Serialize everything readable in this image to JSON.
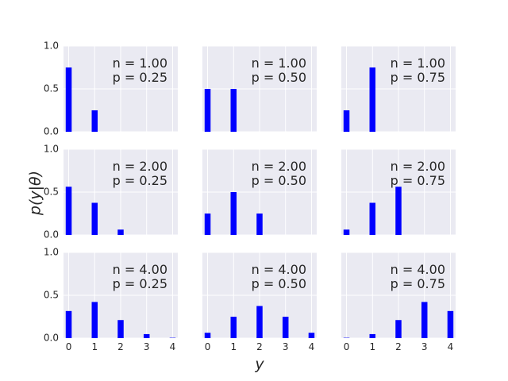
{
  "figure": {
    "ylabel": "p(y|θ)",
    "xlabel": "y"
  },
  "colors": {
    "bar": "#0000ff",
    "panel_bg": "#eaeaf2",
    "grid": "#ffffff",
    "text": "#262626"
  },
  "chart_data": [
    {
      "type": "bar",
      "n_label": "n = 1.00",
      "p_label": "p = 0.25",
      "x": [
        0,
        1
      ],
      "values": [
        0.75,
        0.25
      ],
      "xlim": [
        0,
        4
      ],
      "ylim": [
        0,
        1
      ],
      "yticks": [
        "0.0",
        "0.5",
        "1.0"
      ],
      "xticks": []
    },
    {
      "type": "bar",
      "n_label": "n = 1.00",
      "p_label": "p = 0.50",
      "x": [
        0,
        1
      ],
      "values": [
        0.5,
        0.5
      ],
      "xlim": [
        0,
        4
      ],
      "ylim": [
        0,
        1
      ],
      "yticks": [],
      "xticks": []
    },
    {
      "type": "bar",
      "n_label": "n = 1.00",
      "p_label": "p = 0.75",
      "x": [
        0,
        1
      ],
      "values": [
        0.25,
        0.75
      ],
      "xlim": [
        0,
        4
      ],
      "ylim": [
        0,
        1
      ],
      "yticks": [],
      "xticks": []
    },
    {
      "type": "bar",
      "n_label": "n = 2.00",
      "p_label": "p = 0.25",
      "x": [
        0,
        1,
        2
      ],
      "values": [
        0.5625,
        0.375,
        0.0625
      ],
      "xlim": [
        0,
        4
      ],
      "ylim": [
        0,
        1
      ],
      "yticks": [
        "0.0",
        "0.5",
        "1.0"
      ],
      "xticks": []
    },
    {
      "type": "bar",
      "n_label": "n = 2.00",
      "p_label": "p = 0.50",
      "x": [
        0,
        1,
        2
      ],
      "values": [
        0.25,
        0.5,
        0.25
      ],
      "xlim": [
        0,
        4
      ],
      "ylim": [
        0,
        1
      ],
      "yticks": [],
      "xticks": []
    },
    {
      "type": "bar",
      "n_label": "n = 2.00",
      "p_label": "p = 0.75",
      "x": [
        0,
        1,
        2
      ],
      "values": [
        0.0625,
        0.375,
        0.5625
      ],
      "xlim": [
        0,
        4
      ],
      "ylim": [
        0,
        1
      ],
      "yticks": [],
      "xticks": []
    },
    {
      "type": "bar",
      "n_label": "n = 4.00",
      "p_label": "p = 0.25",
      "x": [
        0,
        1,
        2,
        3,
        4
      ],
      "values": [
        0.3164,
        0.4219,
        0.2109,
        0.0469,
        0.0039
      ],
      "xlim": [
        0,
        4
      ],
      "ylim": [
        0,
        1
      ],
      "yticks": [
        "0.0",
        "0.5",
        "1.0"
      ],
      "xticks": [
        "0",
        "1",
        "2",
        "3",
        "4"
      ]
    },
    {
      "type": "bar",
      "n_label": "n = 4.00",
      "p_label": "p = 0.50",
      "x": [
        0,
        1,
        2,
        3,
        4
      ],
      "values": [
        0.0625,
        0.25,
        0.375,
        0.25,
        0.0625
      ],
      "xlim": [
        0,
        4
      ],
      "ylim": [
        0,
        1
      ],
      "yticks": [],
      "xticks": [
        "0",
        "1",
        "2",
        "3",
        "4"
      ]
    },
    {
      "type": "bar",
      "n_label": "n = 4.00",
      "p_label": "p = 0.75",
      "x": [
        0,
        1,
        2,
        3,
        4
      ],
      "values": [
        0.0039,
        0.0469,
        0.2109,
        0.4219,
        0.3164
      ],
      "xlim": [
        0,
        4
      ],
      "ylim": [
        0,
        1
      ],
      "yticks": [],
      "xticks": [
        "0",
        "1",
        "2",
        "3",
        "4"
      ]
    }
  ]
}
